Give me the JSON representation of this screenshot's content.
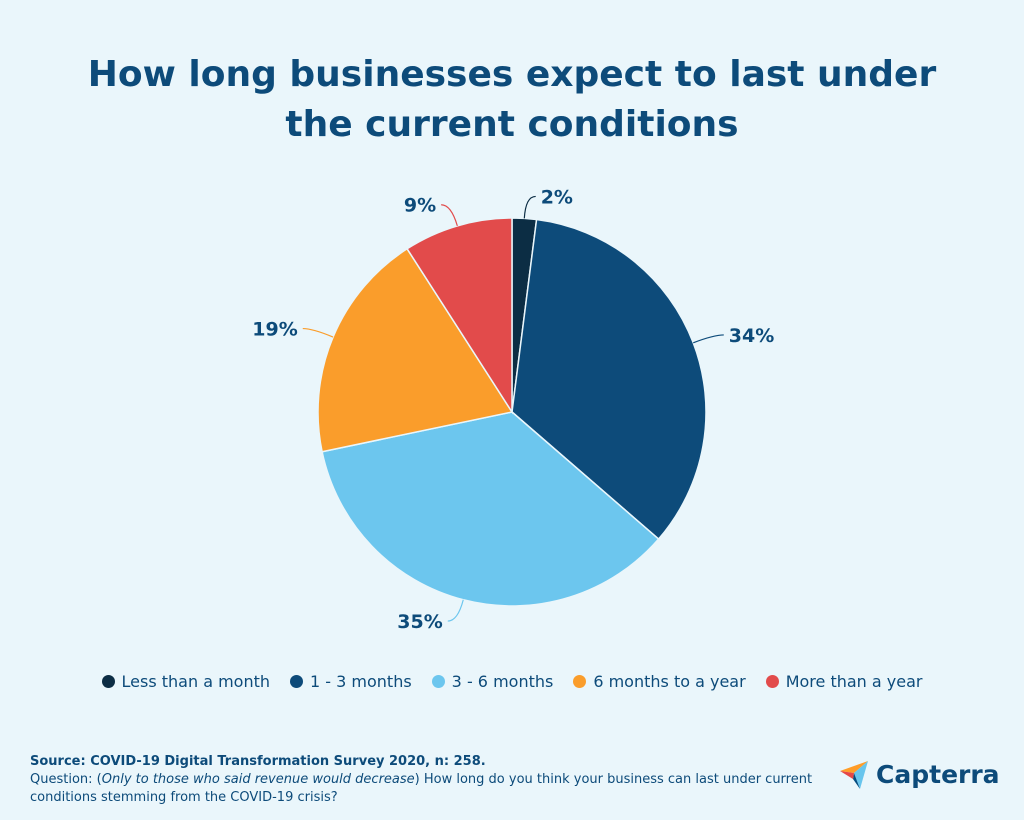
{
  "title": {
    "line1": "How long businesses expect to last under",
    "line2": "the current conditions"
  },
  "chart_data": {
    "type": "pie",
    "categories": [
      "Less than a month",
      "1 - 3 months",
      "3 - 6 months",
      "6 months to a year",
      "More than a year"
    ],
    "values": [
      2,
      34,
      35,
      19,
      9
    ],
    "labels": [
      "2%",
      "34%",
      "35%",
      "19%",
      "9%"
    ],
    "colors": [
      "#0c2d44",
      "#0d4b7a",
      "#6cc6ee",
      "#fa9d2b",
      "#e24b4b"
    ],
    "legend": "bottom"
  },
  "footer": {
    "source_label": "Source: COVID-19 Digital Transformation Survey 2020, n: 258.",
    "question_prefix": "Question: (",
    "question_italic": "Only to those who said revenue would decrease",
    "question_rest": ") How long do you think your business can last under current conditions stemming from the COVID-19 crisis?"
  },
  "logo": {
    "text": "Capterra",
    "icon": "capterra-logo-icon"
  }
}
